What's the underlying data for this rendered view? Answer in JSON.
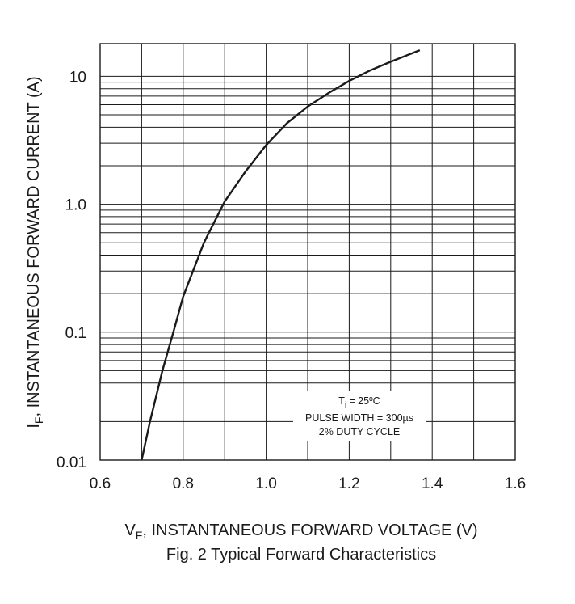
{
  "chart_data": {
    "type": "line",
    "x_scale": "linear",
    "y_scale": "log",
    "xlim": [
      0.6,
      1.6
    ],
    "ylim": [
      0.01,
      18
    ],
    "grid": true,
    "x_ticks": [
      "0.6",
      "0.8",
      "1.0",
      "1.2",
      "1.4",
      "1.6"
    ],
    "y_ticks": [
      "0.01",
      "0.1",
      "1.0",
      "10"
    ],
    "x_tick_values": [
      0.6,
      0.8,
      1.0,
      1.2,
      1.4,
      1.6
    ],
    "y_tick_values": [
      0.01,
      0.1,
      1.0,
      10
    ],
    "xlabel": {
      "main": "V",
      "sub": "F",
      "rest": ", INSTANTANEOUS FORWARD VOLTAGE (V)"
    },
    "ylabel": {
      "main": "I",
      "sub": "F",
      "rest": ", INSTANTANEOUS FORWARD CURRENT (A)"
    },
    "caption": "Fig. 2 Typical Forward Characteristics",
    "annotation": {
      "line1_main": "T",
      "line1_sub": "j",
      "line1_rest": " = 25ºC",
      "line2": "PULSE WIDTH = 300µs",
      "line3": "2% DUTY CYCLE"
    },
    "series": [
      {
        "x": [
          0.7,
          0.72,
          0.75,
          0.78,
          0.8,
          0.85,
          0.9,
          0.95,
          1.0,
          1.05,
          1.1,
          1.15,
          1.2,
          1.25,
          1.3,
          1.37
        ],
        "y": [
          0.01,
          0.02,
          0.05,
          0.11,
          0.19,
          0.5,
          1.05,
          1.8,
          2.9,
          4.3,
          5.8,
          7.4,
          9.2,
          11.1,
          13.0,
          16.0
        ]
      }
    ]
  }
}
